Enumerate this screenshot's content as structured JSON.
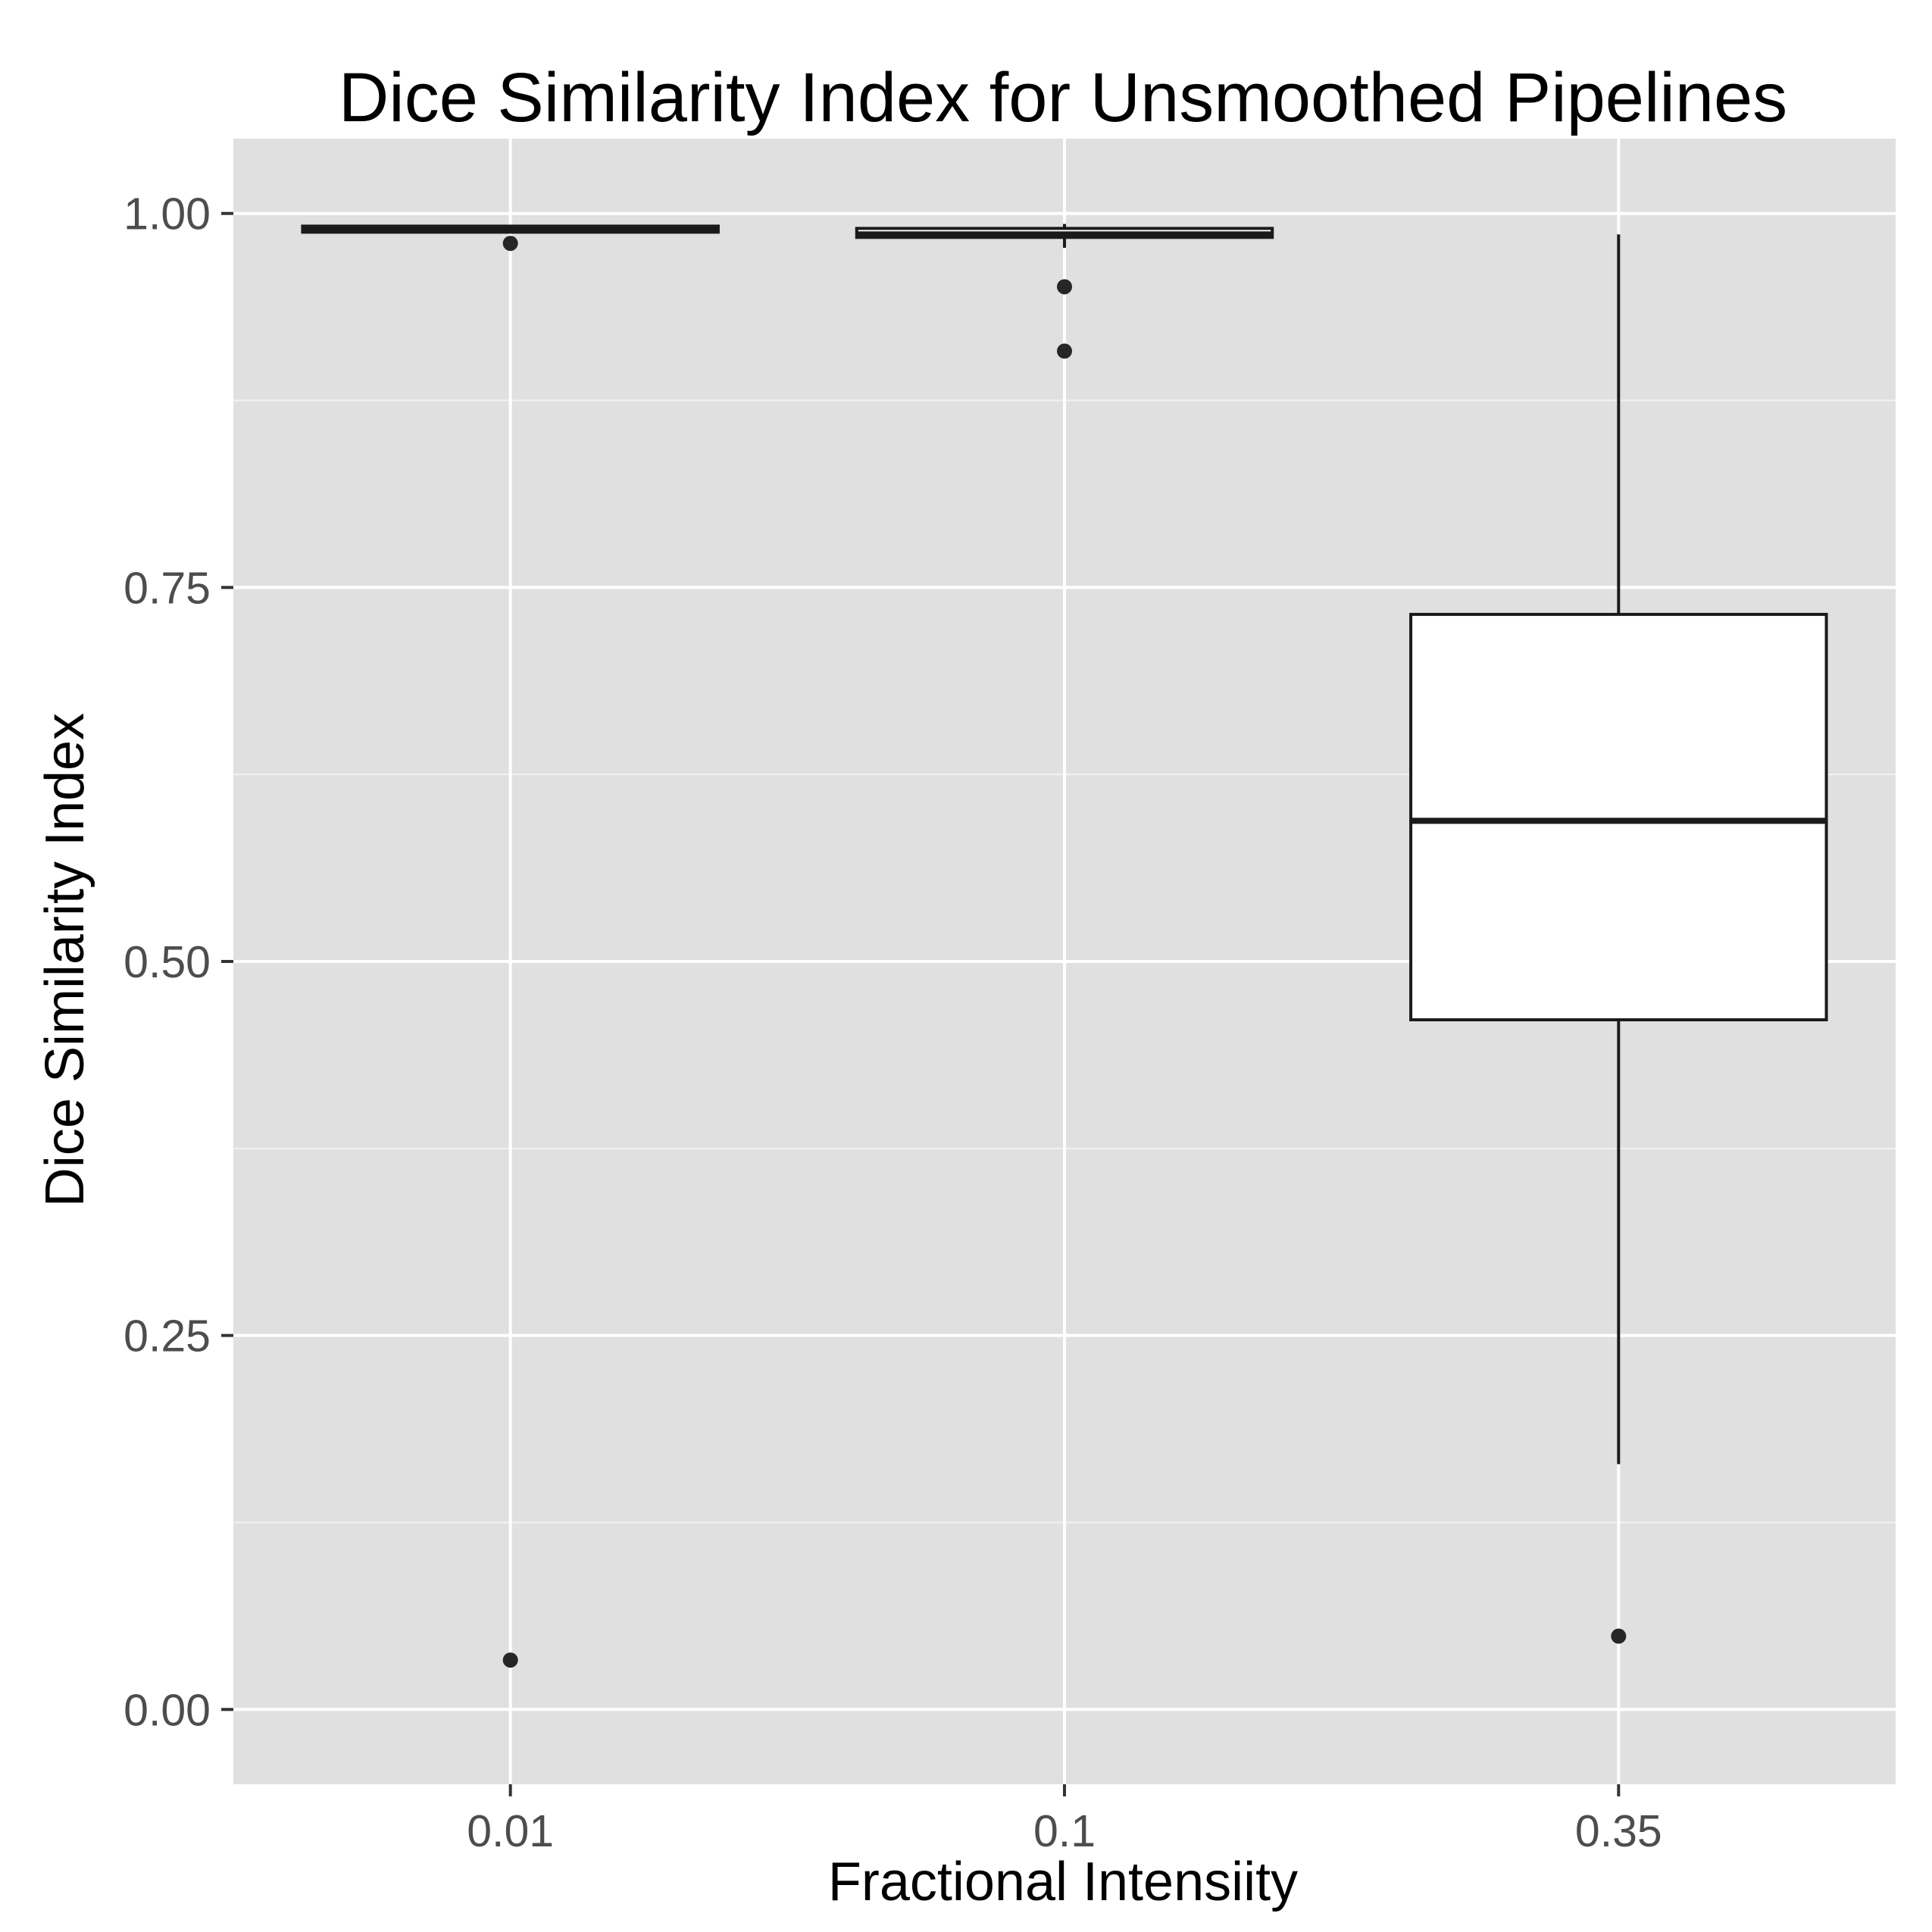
{
  "chart_data": {
    "type": "boxplot",
    "title": "Dice Similarity Index for Unsmoothed Pipelines",
    "xlabel": "Fractional Intensiity",
    "ylabel": "Dice Similarity Index",
    "ylim": [
      -0.05,
      1.05
    ],
    "y_ticks": [
      0.0,
      0.25,
      0.5,
      0.75,
      1.0
    ],
    "y_tick_labels": [
      "0.00",
      "0.25",
      "0.50",
      "0.75",
      "1.00"
    ],
    "categories": [
      "0.01",
      "0.1",
      "0.35"
    ],
    "boxes": [
      {
        "category": "0.01",
        "whisker_low": 0.988,
        "q1": 0.988,
        "median": 0.989,
        "q3": 0.991,
        "whisker_high": 0.992,
        "outliers": [
          0.98,
          0.033
        ]
      },
      {
        "category": "0.1",
        "whisker_low": 0.977,
        "q1": 0.984,
        "median": 0.986,
        "q3": 0.99,
        "whisker_high": 0.993,
        "outliers": [
          0.951,
          0.908
        ]
      },
      {
        "category": "0.35",
        "whisker_low": 0.164,
        "q1": 0.461,
        "median": 0.594,
        "q3": 0.732,
        "whisker_high": 0.986,
        "outliers": [
          0.049
        ]
      }
    ],
    "grid": true,
    "colors": {
      "panel": "#e0e0e0",
      "grid": "#ffffff",
      "box_fill": "#ffffff",
      "box_line": "#1a1a1a",
      "point": "#262626"
    }
  }
}
